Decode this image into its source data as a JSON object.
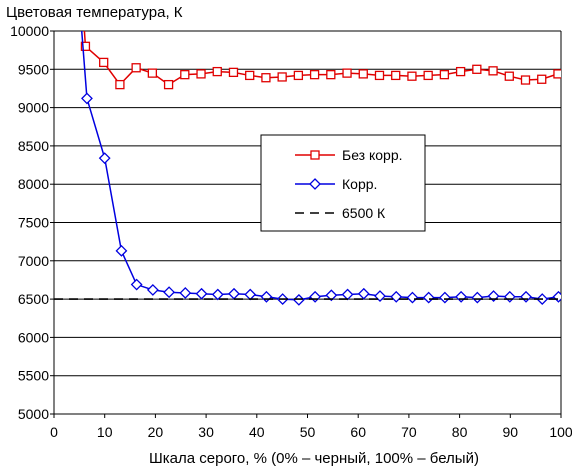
{
  "chart_data": {
    "type": "line",
    "title": "Цветовая температура, К",
    "xlabel": "Шкала серого, % (0% – черный, 100% – белый)",
    "ylabel": "",
    "xlim": [
      0,
      100
    ],
    "ylim": [
      5000,
      10000
    ],
    "xticks": [
      "0",
      "10",
      "20",
      "30",
      "40",
      "50",
      "60",
      "70",
      "80",
      "90",
      "100"
    ],
    "yticks": [
      "5000",
      "5500",
      "6000",
      "6500",
      "7000",
      "7500",
      "8000",
      "8500",
      "9000",
      "9500",
      "10000"
    ],
    "grid": "horizontal",
    "legend_position": "center-right",
    "series": [
      {
        "name": "Без корр.",
        "color": "#e00000",
        "marker": "square",
        "x": [
          6.2,
          9.8,
          13.0,
          16.2,
          19.4,
          22.6,
          25.8,
          29.0,
          32.2,
          35.4,
          38.6,
          41.8,
          45.0,
          48.2,
          51.4,
          54.6,
          57.8,
          61.0,
          64.2,
          67.4,
          70.6,
          73.8,
          77.0,
          80.2,
          83.4,
          86.6,
          89.8,
          93.0,
          96.2,
          99.4
        ],
        "values": [
          9800,
          9590,
          9300,
          9520,
          9450,
          9300,
          9430,
          9440,
          9470,
          9460,
          9420,
          9390,
          9400,
          9420,
          9430,
          9430,
          9450,
          9440,
          9420,
          9420,
          9410,
          9420,
          9430,
          9470,
          9500,
          9480,
          9410,
          9360,
          9370,
          9440
        ]
      },
      {
        "name": "Корр.",
        "color": "#0000e0",
        "marker": "diamond",
        "x": [
          6.5,
          10.0,
          13.3,
          16.3,
          19.5,
          22.7,
          25.9,
          29.1,
          32.3,
          35.5,
          38.7,
          41.9,
          45.1,
          48.3,
          51.5,
          54.7,
          57.9,
          61.1,
          64.3,
          67.5,
          70.7,
          73.9,
          77.1,
          80.3,
          83.5,
          86.7,
          89.9,
          93.1,
          96.3,
          99.5
        ],
        "values": [
          9120,
          8340,
          7130,
          6690,
          6620,
          6590,
          6580,
          6570,
          6560,
          6570,
          6560,
          6530,
          6500,
          6490,
          6530,
          6550,
          6560,
          6570,
          6540,
          6530,
          6520,
          6520,
          6520,
          6530,
          6520,
          6540,
          6530,
          6530,
          6500,
          6530
        ]
      },
      {
        "name": "6500 К",
        "color": "#000000",
        "style": "dashed",
        "x": [
          0,
          100
        ],
        "values": [
          6500,
          6500
        ]
      }
    ]
  }
}
